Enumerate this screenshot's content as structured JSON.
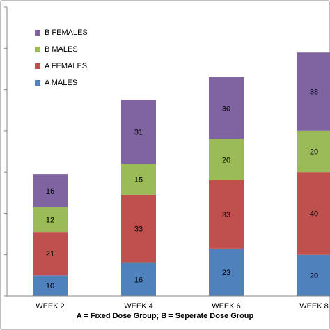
{
  "chart_data": {
    "type": "bar",
    "stacked": true,
    "categories": [
      "WEEK 2",
      "WEEK 4",
      "WEEK 6",
      "WEEK 8"
    ],
    "series": [
      {
        "name": "A MALES",
        "values": [
          10,
          16,
          23,
          20
        ],
        "color": "#4f81bd"
      },
      {
        "name": "A FEMALES",
        "values": [
          21,
          33,
          33,
          40
        ],
        "color": "#c0504d"
      },
      {
        "name": "B MALES",
        "values": [
          12,
          15,
          20,
          20
        ],
        "color": "#9bbb59"
      },
      {
        "name": "B FEMALES",
        "values": [
          16,
          31,
          30,
          38
        ],
        "color": "#8064a2"
      }
    ],
    "legend_order": [
      "B FEMALES",
      "B MALES",
      "A FEMALES",
      "A MALES"
    ],
    "legend_position": "top-left",
    "xlabel": "A = Fixed Dose Group; B = Seperate Dose Group",
    "ylim": [
      0,
      140
    ],
    "grid": false
  }
}
